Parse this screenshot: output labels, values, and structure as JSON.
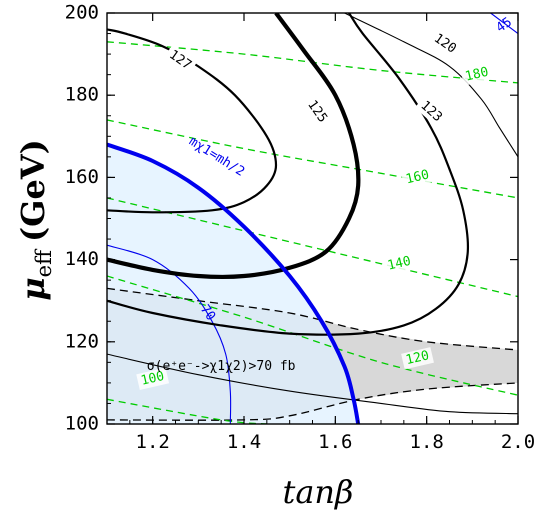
{
  "chart_data": {
    "type": "contour",
    "xlabel": "tanβ",
    "ylabel_main": "μ",
    "ylabel_sub": "eff",
    "ylabel_unit": "(GeV)",
    "xlim": [
      1.1,
      2.0
    ],
    "ylim": [
      100,
      200
    ],
    "xticks": [
      1.2,
      1.4,
      1.6,
      1.8,
      2.0
    ],
    "yticks": [
      100,
      120,
      140,
      160,
      180,
      200
    ],
    "xtick_labels": [
      "1.2",
      "1.4",
      "1.6",
      "1.8",
      "2.0"
    ],
    "ytick_labels": [
      "100",
      "120",
      "140",
      "160",
      "180",
      "200"
    ],
    "colors": {
      "higgs_mass": "#000000",
      "green_contours": "#00cc00",
      "blue_contours": "#0000ee",
      "blue_region": "#dff0ff",
      "gray_region": "#d8d8d8"
    },
    "higgs_mass_contours": [
      {
        "label": "127",
        "label_pos": [
          1.26,
          188.5
        ],
        "label_angle": 35,
        "weight": "medium",
        "points": [
          [
            1.1,
            152
          ],
          [
            1.2,
            151.5
          ],
          [
            1.33,
            152
          ],
          [
            1.4,
            154
          ],
          [
            1.45,
            158
          ],
          [
            1.47,
            163
          ],
          [
            1.45,
            170
          ],
          [
            1.38,
            180
          ],
          [
            1.3,
            187
          ],
          [
            1.22,
            192
          ],
          [
            1.14,
            195
          ],
          [
            1.1,
            196
          ]
        ]
      },
      {
        "label": "125",
        "label_pos": [
          1.56,
          176
        ],
        "label_angle": 55,
        "weight": "bold",
        "points": [
          [
            1.1,
            140
          ],
          [
            1.2,
            137.5
          ],
          [
            1.3,
            136
          ],
          [
            1.4,
            136
          ],
          [
            1.5,
            138
          ],
          [
            1.58,
            142
          ],
          [
            1.63,
            150
          ],
          [
            1.65,
            158
          ],
          [
            1.64,
            168
          ],
          [
            1.6,
            180
          ],
          [
            1.53,
            191
          ],
          [
            1.47,
            200
          ]
        ]
      },
      {
        "label": "123",
        "label_pos": [
          1.81,
          176
        ],
        "label_angle": 42,
        "weight": "medium",
        "points": [
          [
            1.1,
            130
          ],
          [
            1.2,
            127
          ],
          [
            1.35,
            124
          ],
          [
            1.5,
            122
          ],
          [
            1.65,
            122
          ],
          [
            1.75,
            124
          ],
          [
            1.82,
            128
          ],
          [
            1.87,
            134
          ],
          [
            1.89,
            142
          ],
          [
            1.88,
            152
          ],
          [
            1.85,
            162
          ],
          [
            1.81,
            172
          ],
          [
            1.74,
            184
          ],
          [
            1.66,
            195
          ],
          [
            1.63,
            200
          ]
        ]
      },
      {
        "label": "120",
        "label_pos": [
          1.84,
          192.5
        ],
        "label_angle": 35,
        "weight": "thin",
        "points": [
          [
            1.62,
            200
          ],
          [
            1.75,
            193
          ],
          [
            1.85,
            187
          ],
          [
            1.92,
            179
          ],
          [
            1.96,
            172
          ],
          [
            2.0,
            165
          ]
        ]
      },
      {
        "label": "",
        "label_pos": [
          0,
          0
        ],
        "label_angle": 0,
        "weight": "thin",
        "points": [
          [
            1.1,
            117
          ],
          [
            1.3,
            112
          ],
          [
            1.5,
            108
          ],
          [
            1.7,
            105
          ],
          [
            1.85,
            103
          ],
          [
            2.0,
            102.5
          ]
        ]
      }
    ],
    "green_contours": [
      {
        "label": "180",
        "label_pos": [
          1.91,
          185
        ],
        "points": [
          [
            1.1,
            193
          ],
          [
            1.4,
            190
          ],
          [
            1.7,
            186
          ],
          [
            2.0,
            183
          ]
        ]
      },
      {
        "label": "160",
        "label_pos": [
          1.78,
          160
        ],
        "points": [
          [
            1.1,
            174
          ],
          [
            1.4,
            167
          ],
          [
            1.7,
            161
          ],
          [
            2.0,
            155
          ]
        ]
      },
      {
        "label": "140",
        "label_pos": [
          1.74,
          139
        ],
        "points": [
          [
            1.1,
            155
          ],
          [
            1.4,
            147
          ],
          [
            1.7,
            139
          ],
          [
            2.0,
            131
          ]
        ]
      },
      {
        "label": "120",
        "label_pos": [
          1.78,
          116
        ],
        "points": [
          [
            1.1,
            136
          ],
          [
            1.4,
            126
          ],
          [
            1.7,
            115
          ],
          [
            2.0,
            107
          ]
        ]
      },
      {
        "label": "100",
        "label_pos": [
          1.2,
          111
        ],
        "points": [
          [
            1.1,
            106
          ],
          [
            1.35,
            101
          ],
          [
            1.45,
            100
          ]
        ]
      }
    ],
    "blue_contours": [
      {
        "label": "70",
        "label_pos": [
          1.32,
          127
        ],
        "points": [
          [
            1.1,
            143.5
          ],
          [
            1.2,
            140
          ],
          [
            1.28,
            133
          ],
          [
            1.33,
            125
          ],
          [
            1.36,
            117
          ],
          [
            1.37,
            108
          ],
          [
            1.37,
            100
          ]
        ]
      },
      {
        "label": "45",
        "label_pos": [
          1.97,
          197
        ],
        "points": [
          [
            1.94,
            200
          ],
          [
            2.0,
            195
          ]
        ]
      }
    ],
    "higgs_half_boundary": {
      "label": "mχ1=mh/2",
      "label_pos": [
        1.34,
        165
      ],
      "label_angle": 32,
      "points": [
        [
          1.1,
          168
        ],
        [
          1.2,
          164
        ],
        [
          1.3,
          157.5
        ],
        [
          1.4,
          148
        ],
        [
          1.5,
          136
        ],
        [
          1.57,
          125
        ],
        [
          1.62,
          114
        ],
        [
          1.64,
          106
        ],
        [
          1.65,
          100
        ]
      ]
    },
    "cross_section_band": {
      "label": "σ(e⁺e⁻->χ1χ2)>70 fb",
      "label_pos": [
        1.35,
        114
      ],
      "upper": [
        [
          1.1,
          133
        ],
        [
          1.3,
          130
        ],
        [
          1.5,
          127
        ],
        [
          1.65,
          123
        ],
        [
          1.8,
          120
        ],
        [
          2.0,
          118
        ]
      ],
      "lower": [
        [
          1.1,
          101
        ],
        [
          1.4,
          101
        ],
        [
          1.5,
          102
        ],
        [
          1.65,
          106
        ],
        [
          1.8,
          108.5
        ],
        [
          2.0,
          110
        ]
      ]
    }
  }
}
